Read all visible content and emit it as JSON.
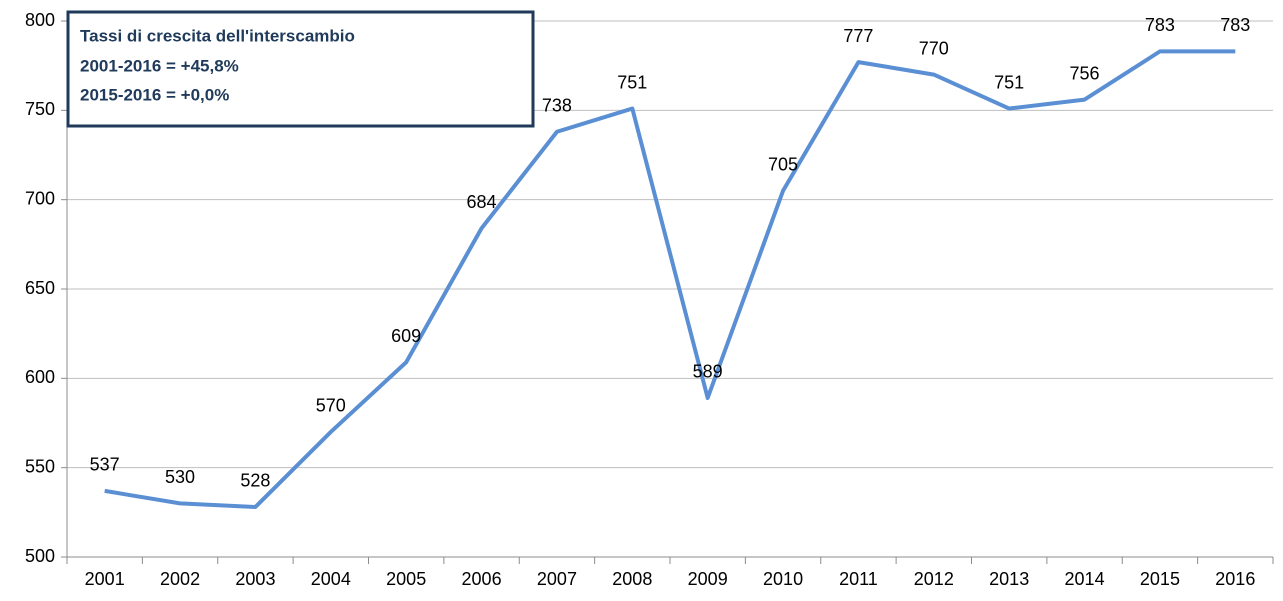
{
  "chart_data": {
    "type": "line",
    "categories": [
      "2001",
      "2002",
      "2003",
      "2004",
      "2005",
      "2006",
      "2007",
      "2008",
      "2009",
      "2010",
      "2011",
      "2012",
      "2013",
      "2014",
      "2015",
      "2016"
    ],
    "values": [
      537,
      530,
      528,
      570,
      609,
      684,
      738,
      751,
      589,
      705,
      777,
      770,
      751,
      756,
      783,
      783
    ],
    "color": "#5b8fd4",
    "ylim": [
      500,
      800
    ],
    "yticks": [
      500,
      550,
      600,
      650,
      700,
      750,
      800
    ],
    "grid": true,
    "annotation": [
      "Tassi di crescita dell'interscambio",
      "2001-2016 = +45,8%",
      "2015-2016 = +0,0%"
    ]
  }
}
